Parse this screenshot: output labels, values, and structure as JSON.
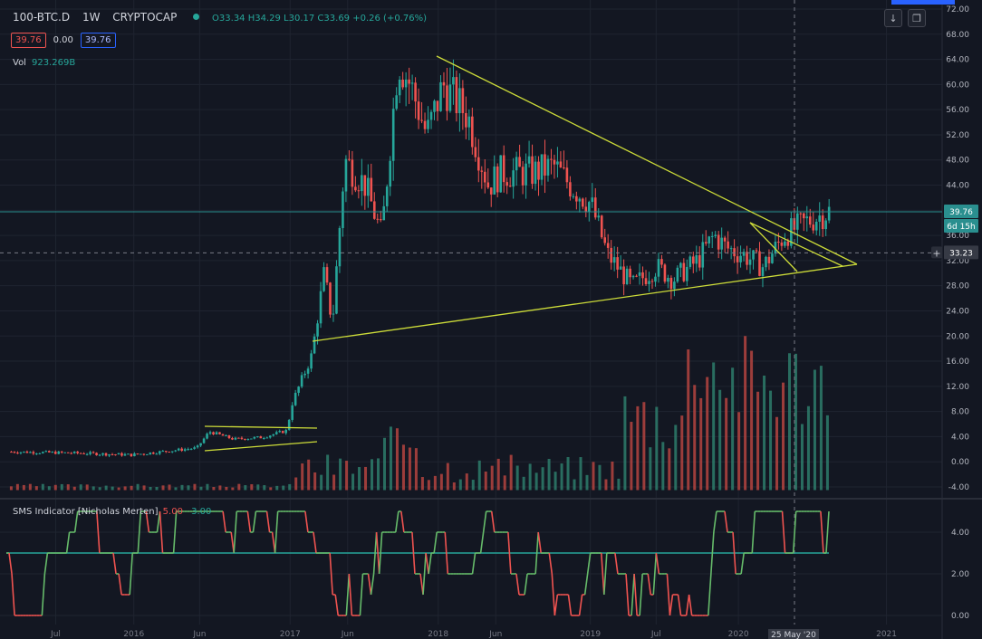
{
  "header": {
    "symbol": "100-BTC.D",
    "interval": "1W",
    "exchange": "CRYPTOCAP",
    "ohlc_text": "O33.34 H34.29 L30.17 C33.69 +0.26 (+0.76%)"
  },
  "prices": {
    "bid": "39.76",
    "spread": "0.00",
    "ask": "39.76"
  },
  "volume": {
    "label": "Vol",
    "value": "923.269B"
  },
  "indicator": {
    "name": "SMS Indicator [Nicholas Merten]",
    "v1": "5.00",
    "v2": "3.00"
  },
  "price_labels": {
    "current": "39.76",
    "countdown": "6d 15h",
    "crosshair": "33.23"
  },
  "crosshair_date": "25 May '20",
  "colors": {
    "up": "#26a69a",
    "down": "#ef5350",
    "bg": "#131722",
    "trend": "#cddc39",
    "hline": "#2a8f8f",
    "sms_green": "#66bb6a",
    "sms_red": "#ef5350"
  },
  "chart_data": {
    "type": "candlestick",
    "y_ticks": [
      "72.00",
      "68.00",
      "64.00",
      "60.00",
      "56.00",
      "52.00",
      "48.00",
      "44.00",
      "40.00",
      "36.00",
      "32.00",
      "28.00",
      "24.00",
      "20.00",
      "16.00",
      "12.00",
      "8.00",
      "4.00",
      "0.00",
      "-4.00"
    ],
    "ylim": [
      -5,
      72
    ],
    "x_ticks": [
      "Jul",
      "2016",
      "Jun",
      "2017",
      "Jun",
      "2018",
      "Jun",
      "2019",
      "Jul",
      "2020",
      "2021"
    ],
    "series": [
      {
        "name": "100-BTC.D",
        "x": [
          "2015-07",
          "2016-01",
          "2016-06",
          "2017-01",
          "2017-03",
          "2017-06",
          "2017-09",
          "2018-01",
          "2018-04",
          "2018-07",
          "2018-10",
          "2019-01",
          "2019-04",
          "2019-07",
          "2019-10",
          "2020-01",
          "2020-03",
          "2020-05",
          "2020-07"
        ],
        "values": [
          1.5,
          1.2,
          3.5,
          4.5,
          9,
          33,
          48,
          64,
          60,
          51,
          46,
          47,
          38,
          28,
          30,
          36,
          31,
          33,
          40
        ]
      }
    ],
    "horizontal_line": 39.76,
    "sms_indicator": {
      "ylim": [
        -0.5,
        5.5
      ],
      "y_ticks": [
        "4.00",
        "2.00",
        "0.00"
      ],
      "reference": 3,
      "range": [
        0,
        5
      ]
    }
  }
}
